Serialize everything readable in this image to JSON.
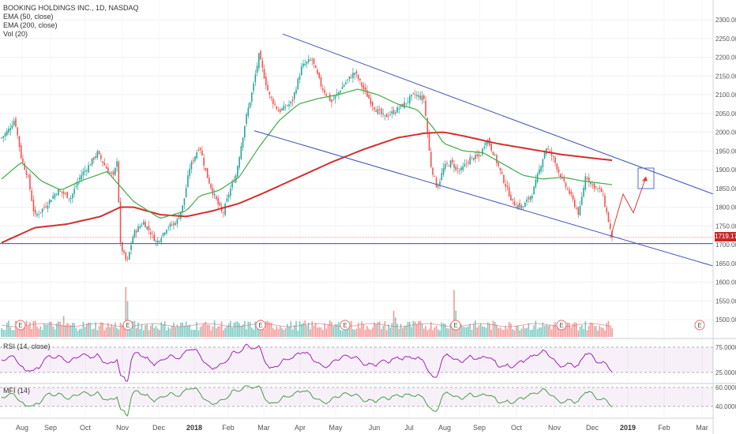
{
  "legend": {
    "title": "BOOKING HOLDINGS INC., 1D, NASDAQ",
    "ema50": "EMA (50, close)",
    "ema200": "EMA (200, close)",
    "vol": "Vol (20)"
  },
  "rsi_label": "RSI (14, close)",
  "mfi_label": "MFI (14)",
  "last_price_tag": "1719.17",
  "colors": {
    "up": "#26a69a",
    "down": "#ef5350",
    "ema50": "#4caf50",
    "ema200": "#d32f2f",
    "channel": "#3f51b5",
    "rsi": "#9c27b0",
    "mfi": "#43a047",
    "arrow": "#e53935"
  },
  "chart_data": {
    "type": "candlestick",
    "ticker": "BOOKING HOLDINGS INC.",
    "interval": "1D",
    "exchange": "NASDAQ",
    "price_axis_ticks": [
      "2300.00",
      "2250.00",
      "2200.00",
      "2150.00",
      "2100.00",
      "2050.00",
      "2000.00",
      "1950.00",
      "1900.00",
      "1850.00",
      "1800.00",
      "1750.00",
      "1700.00",
      "1650.00",
      "1600.00",
      "1550.00",
      "1500.00"
    ],
    "ylim": [
      1450,
      2320
    ],
    "date_axis_ticks": [
      "Aug",
      "Sep",
      "Oct",
      "Nov",
      "Dec",
      "2018",
      "Feb",
      "Mar",
      "Apr",
      "May",
      "Jun",
      "Jul",
      "Aug",
      "Sep",
      "Oct",
      "Nov",
      "Dec",
      "2019",
      "Feb",
      "Mar"
    ],
    "last_price": 1719.17,
    "horizontal_support": 1703,
    "channel_upper": [
      [
        0.395,
        2262
      ],
      [
        1.0,
        1835
      ]
    ],
    "channel_lower": [
      [
        0.355,
        2004
      ],
      [
        1.0,
        1643
      ]
    ],
    "projection_path": [
      1719,
      1835,
      1785,
      1880
    ],
    "price_keypoints": [
      [
        0,
        1985
      ],
      [
        0.01,
        2005
      ],
      [
        0.02,
        2035
      ],
      [
        0.03,
        1930
      ],
      [
        0.04,
        1880
      ],
      [
        0.05,
        1775
      ],
      [
        0.065,
        1800
      ],
      [
        0.085,
        1845
      ],
      [
        0.105,
        1825
      ],
      [
        0.12,
        1885
      ],
      [
        0.13,
        1905
      ],
      [
        0.145,
        1945
      ],
      [
        0.16,
        1900
      ],
      [
        0.17,
        1880
      ],
      [
        0.175,
        1930
      ],
      [
        0.18,
        1700
      ],
      [
        0.19,
        1650
      ],
      [
        0.2,
        1730
      ],
      [
        0.215,
        1760
      ],
      [
        0.225,
        1735
      ],
      [
        0.235,
        1705
      ],
      [
        0.25,
        1745
      ],
      [
        0.265,
        1760
      ],
      [
        0.275,
        1805
      ],
      [
        0.285,
        1905
      ],
      [
        0.3,
        1965
      ],
      [
        0.31,
        1890
      ],
      [
        0.32,
        1840
      ],
      [
        0.335,
        1780
      ],
      [
        0.345,
        1840
      ],
      [
        0.355,
        1885
      ],
      [
        0.37,
        2035
      ],
      [
        0.38,
        2110
      ],
      [
        0.39,
        2205
      ],
      [
        0.405,
        2100
      ],
      [
        0.42,
        2055
      ],
      [
        0.44,
        2080
      ],
      [
        0.455,
        2175
      ],
      [
        0.47,
        2195
      ],
      [
        0.485,
        2120
      ],
      [
        0.5,
        2080
      ],
      [
        0.52,
        2130
      ],
      [
        0.535,
        2160
      ],
      [
        0.55,
        2110
      ],
      [
        0.565,
        2065
      ],
      [
        0.58,
        2040
      ],
      [
        0.595,
        2055
      ],
      [
        0.61,
        2075
      ],
      [
        0.625,
        2100
      ],
      [
        0.64,
        2090
      ],
      [
        0.65,
        1915
      ],
      [
        0.66,
        1850
      ],
      [
        0.67,
        1905
      ],
      [
        0.68,
        1920
      ],
      [
        0.695,
        1895
      ],
      [
        0.71,
        1930
      ],
      [
        0.725,
        1935
      ],
      [
        0.735,
        1985
      ],
      [
        0.745,
        1945
      ],
      [
        0.76,
        1875
      ],
      [
        0.775,
        1810
      ],
      [
        0.79,
        1800
      ],
      [
        0.805,
        1840
      ],
      [
        0.815,
        1900
      ],
      [
        0.825,
        1960
      ],
      [
        0.835,
        1935
      ],
      [
        0.85,
        1870
      ],
      [
        0.86,
        1840
      ],
      [
        0.875,
        1780
      ],
      [
        0.885,
        1885
      ],
      [
        0.895,
        1860
      ],
      [
        0.91,
        1840
      ],
      [
        0.925,
        1719
      ]
    ],
    "ema50_keypoints": [
      [
        0,
        1875
      ],
      [
        0.03,
        1920
      ],
      [
        0.06,
        1870
      ],
      [
        0.09,
        1845
      ],
      [
        0.12,
        1870
      ],
      [
        0.16,
        1895
      ],
      [
        0.2,
        1815
      ],
      [
        0.24,
        1770
      ],
      [
        0.28,
        1790
      ],
      [
        0.3,
        1830
      ],
      [
        0.33,
        1845
      ],
      [
        0.36,
        1880
      ],
      [
        0.39,
        1960
      ],
      [
        0.42,
        2030
      ],
      [
        0.45,
        2075
      ],
      [
        0.48,
        2090
      ],
      [
        0.51,
        2100
      ],
      [
        0.54,
        2115
      ],
      [
        0.57,
        2100
      ],
      [
        0.6,
        2075
      ],
      [
        0.63,
        2060
      ],
      [
        0.655,
        2010
      ],
      [
        0.67,
        1970
      ],
      [
        0.7,
        1950
      ],
      [
        0.73,
        1945
      ],
      [
        0.76,
        1915
      ],
      [
        0.79,
        1885
      ],
      [
        0.82,
        1875
      ],
      [
        0.85,
        1880
      ],
      [
        0.88,
        1870
      ],
      [
        0.925,
        1860
      ]
    ],
    "ema200_keypoints": [
      [
        0,
        1705
      ],
      [
        0.05,
        1745
      ],
      [
        0.1,
        1755
      ],
      [
        0.15,
        1775
      ],
      [
        0.18,
        1800
      ],
      [
        0.2,
        1800
      ],
      [
        0.24,
        1780
      ],
      [
        0.28,
        1775
      ],
      [
        0.32,
        1790
      ],
      [
        0.36,
        1810
      ],
      [
        0.4,
        1840
      ],
      [
        0.45,
        1880
      ],
      [
        0.5,
        1920
      ],
      [
        0.55,
        1955
      ],
      [
        0.6,
        1985
      ],
      [
        0.64,
        1997
      ],
      [
        0.67,
        2000
      ],
      [
        0.7,
        1990
      ],
      [
        0.75,
        1970
      ],
      [
        0.8,
        1955
      ],
      [
        0.85,
        1940
      ],
      [
        0.925,
        1925
      ]
    ],
    "rsi_ticks": [
      "75.0000",
      "25.0000"
    ],
    "mfi_ticks": [
      "60.0000",
      "40.0000"
    ]
  }
}
